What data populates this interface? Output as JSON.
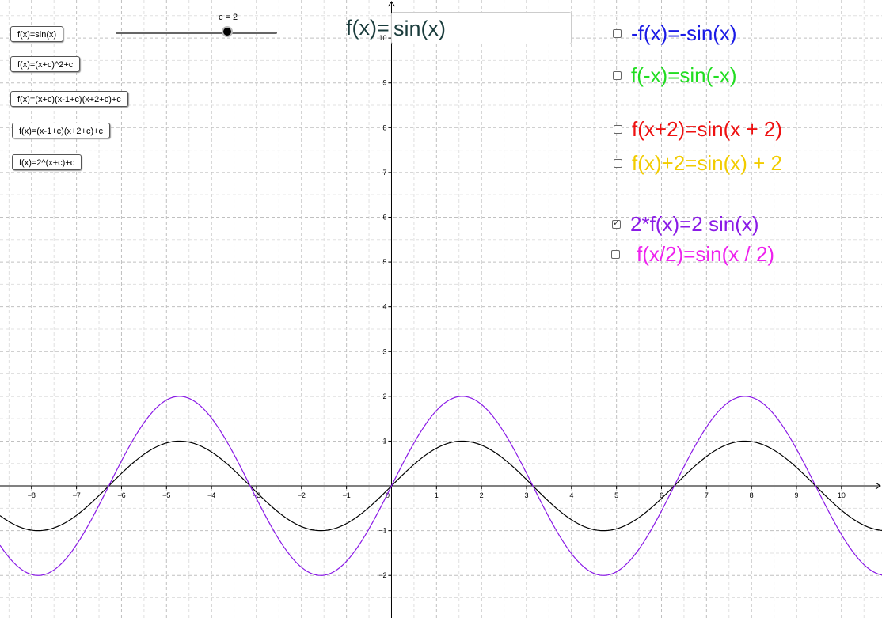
{
  "slider": {
    "label": "c = 2",
    "value": 2,
    "min": -5,
    "max": 5
  },
  "buttons": [
    {
      "label": "f(x)=sin(x)"
    },
    {
      "label": "f(x)=(x+c)^2+c"
    },
    {
      "label": "f(x)=(x+c)(x-1+c)(x+2+c)+c"
    },
    {
      "label": "f(x)=(x-1+c)(x+2+c)+c"
    },
    {
      "label": "f(x)=2^(x+c)+c"
    }
  ],
  "input_label": "f(x)=",
  "input_value": "sin(x)",
  "checkboxes": [
    {
      "label": "-f(x)=-sin(x)",
      "color": "#1a1ae6",
      "checked": false
    },
    {
      "label": "f(-x)=sin(-x)",
      "color": "#22dd22",
      "checked": false
    },
    {
      "label": "f(x+2)=sin(x + 2)",
      "color": "#ee1111",
      "checked": false
    },
    {
      "label": "f(x)+2=sin(x) + 2",
      "color": "#f2cc00",
      "checked": false
    },
    {
      "label": "2*f(x)=2 sin(x)",
      "color": "#8a1ae6",
      "checked": true
    },
    {
      "label": "f(x/2)=sin(x / 2)",
      "color": "#ee22ee",
      "checked": false
    }
  ],
  "chart_data": {
    "type": "line",
    "xlim": [
      -8.7,
      10.9
    ],
    "ylim": [
      -2.95,
      10.85
    ],
    "grid": true,
    "x_ticks": [
      -8,
      -7,
      -6,
      -5,
      -4,
      -3,
      -2,
      -1,
      0,
      1,
      2,
      3,
      4,
      5,
      6,
      7,
      8,
      9,
      10
    ],
    "y_ticks": [
      -2,
      -1,
      1,
      2,
      3,
      4,
      5,
      6,
      7,
      8,
      9,
      10
    ],
    "series": [
      {
        "name": "",
        "function": "sin(x)",
        "color": "#000000"
      },
      {
        "name": "",
        "function": "2 sin(x)",
        "color": "#8a1ae6"
      }
    ]
  }
}
